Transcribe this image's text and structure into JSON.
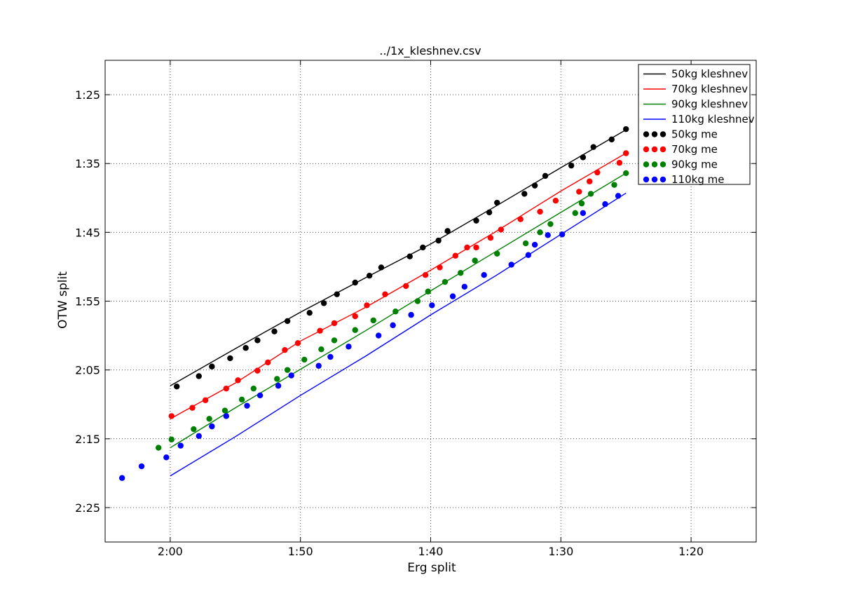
{
  "title": "../1x_kleshnev.csv",
  "axes": {
    "xlabel": "Erg split",
    "ylabel": "OTW split"
  },
  "styles": {
    "background": "#ffffff",
    "spine_color": "#000000",
    "grid_color": "#444444",
    "tick_color": "#000000",
    "legend_border": "#000000",
    "legend_background": "#ffffff"
  },
  "legend": {
    "position": "upper right",
    "entries": [
      {
        "label": "50kg kleshnev",
        "marker": "line",
        "color": "#000000"
      },
      {
        "label": "70kg kleshnev",
        "marker": "line",
        "color": "#ff0000"
      },
      {
        "label": "90kg kleshnev",
        "marker": "line",
        "color": "#008000"
      },
      {
        "label": "110kg kleshnev",
        "marker": "line",
        "color": "#0000ff"
      },
      {
        "label": "50kg me",
        "marker": "dots",
        "color": "#000000"
      },
      {
        "label": "70kg me",
        "marker": "dots",
        "color": "#ff0000"
      },
      {
        "label": "90kg me",
        "marker": "dots",
        "color": "#008000"
      },
      {
        "label": "110kg me",
        "marker": "dots",
        "color": "#0000ff"
      }
    ]
  },
  "chart_data": {
    "type": "line+scatter",
    "title": "../1x_kleshnev.csv",
    "xlabel": "Erg split",
    "ylabel": "OTW split",
    "grid": true,
    "legend_position": "upper right",
    "x_axis": {
      "unit": "split seconds per 500m (mm:ss labels)",
      "reversed": true,
      "domain": [
        125,
        75
      ],
      "ticks": [
        {
          "label": "2:00",
          "value": 120
        },
        {
          "label": "1:50",
          "value": 110
        },
        {
          "label": "1:40",
          "value": 100
        },
        {
          "label": "1:30",
          "value": 90
        },
        {
          "label": "1:20",
          "value": 80
        }
      ]
    },
    "y_axis": {
      "unit": "split seconds per 500m (mm:ss labels)",
      "inverted": true,
      "domain": [
        80,
        150
      ],
      "ticks": [
        {
          "label": "1:25",
          "value": 85
        },
        {
          "label": "1:35",
          "value": 95
        },
        {
          "label": "1:45",
          "value": 105
        },
        {
          "label": "1:55",
          "value": 115
        },
        {
          "label": "2:05",
          "value": 125
        },
        {
          "label": "2:15",
          "value": 135
        },
        {
          "label": "2:25",
          "value": 145
        }
      ]
    },
    "series": [
      {
        "name": "50kg kleshnev",
        "type": "line",
        "color": "#000000",
        "linewidth": 1.4,
        "x": [
          120,
          115,
          110,
          105,
          100,
          95,
          90,
          85
        ],
        "y": [
          127.3,
          121.9,
          116.6,
          111.6,
          106.7,
          101.2,
          95.6,
          90.1
        ]
      },
      {
        "name": "70kg kleshnev",
        "type": "line",
        "color": "#ff0000",
        "linewidth": 1.4,
        "x": [
          120,
          115,
          110,
          105,
          100,
          95,
          90,
          85
        ],
        "y": [
          132.1,
          126.9,
          120.8,
          115.9,
          110.5,
          104.9,
          99.0,
          93.5
        ]
      },
      {
        "name": "90kg kleshnev",
        "type": "line",
        "color": "#008000",
        "linewidth": 1.4,
        "x": [
          120,
          115,
          110,
          105,
          100,
          95,
          90,
          85
        ],
        "y": [
          136.3,
          130.5,
          124.9,
          119.3,
          113.5,
          107.8,
          102.1,
          96.4
        ]
      },
      {
        "name": "110kg kleshnev",
        "type": "line",
        "color": "#0000ff",
        "linewidth": 1.4,
        "x": [
          120,
          115,
          110,
          105,
          100,
          95,
          90,
          85
        ],
        "y": [
          140.4,
          134.7,
          128.7,
          123.0,
          117.0,
          111.3,
          105.3,
          99.3
        ]
      },
      {
        "name": "50kg me",
        "type": "scatter",
        "color": "#000000",
        "markersize": 4.2,
        "points": [
          [
            119.5,
            127.4
          ],
          [
            117.8,
            125.9
          ],
          [
            116.8,
            124.5
          ],
          [
            115.4,
            123.3
          ],
          [
            114.2,
            121.8
          ],
          [
            113.3,
            120.7
          ],
          [
            112.0,
            119.4
          ],
          [
            111.0,
            117.9
          ],
          [
            109.3,
            116.7
          ],
          [
            108.2,
            115.3
          ],
          [
            107.2,
            114.0
          ],
          [
            105.8,
            112.3
          ],
          [
            104.7,
            111.3
          ],
          [
            103.8,
            110.1
          ],
          [
            101.6,
            108.5
          ],
          [
            100.6,
            107.2
          ],
          [
            99.4,
            106.2
          ],
          [
            98.7,
            104.8
          ],
          [
            96.5,
            103.3
          ],
          [
            95.5,
            102.1
          ],
          [
            94.9,
            100.7
          ],
          [
            92.8,
            99.4
          ],
          [
            92.0,
            98.2
          ],
          [
            91.2,
            96.8
          ],
          [
            89.2,
            95.3
          ],
          [
            88.3,
            94.1
          ],
          [
            87.5,
            92.6
          ],
          [
            86.1,
            91.5
          ],
          [
            85.0,
            90.0
          ]
        ]
      },
      {
        "name": "70kg me",
        "type": "scatter",
        "color": "#ff0000",
        "markersize": 4.2,
        "points": [
          [
            119.9,
            131.7
          ],
          [
            118.3,
            130.5
          ],
          [
            117.3,
            129.4
          ],
          [
            115.7,
            127.7
          ],
          [
            114.8,
            126.5
          ],
          [
            113.3,
            125.1
          ],
          [
            112.5,
            123.9
          ],
          [
            111.2,
            122.1
          ],
          [
            110.2,
            121.1
          ],
          [
            108.5,
            119.3
          ],
          [
            107.4,
            118.2
          ],
          [
            105.8,
            117.2
          ],
          [
            104.9,
            115.6
          ],
          [
            103.5,
            114.0
          ],
          [
            101.9,
            112.8
          ],
          [
            100.4,
            111.2
          ],
          [
            99.3,
            110.1
          ],
          [
            98.1,
            108.4
          ],
          [
            97.2,
            107.2
          ],
          [
            96.5,
            107.2
          ],
          [
            95.4,
            105.8
          ],
          [
            94.6,
            104.6
          ],
          [
            93.1,
            103.1
          ],
          [
            91.6,
            102.0
          ],
          [
            90.4,
            100.4
          ],
          [
            88.6,
            99.1
          ],
          [
            87.8,
            97.6
          ],
          [
            87.2,
            96.3
          ],
          [
            85.5,
            94.9
          ],
          [
            85.0,
            93.5
          ]
        ]
      },
      {
        "name": "90kg me",
        "type": "scatter",
        "color": "#008000",
        "markersize": 4.2,
        "points": [
          [
            120.9,
            136.3
          ],
          [
            119.9,
            135.1
          ],
          [
            118.2,
            133.6
          ],
          [
            117.0,
            132.1
          ],
          [
            115.8,
            130.9
          ],
          [
            114.5,
            129.3
          ],
          [
            113.6,
            127.7
          ],
          [
            111.8,
            126.3
          ],
          [
            111.0,
            125.0
          ],
          [
            109.7,
            123.5
          ],
          [
            108.4,
            122.0
          ],
          [
            107.4,
            120.7
          ],
          [
            105.8,
            119.2
          ],
          [
            104.4,
            117.8
          ],
          [
            102.7,
            116.5
          ],
          [
            101.0,
            115.0
          ],
          [
            100.2,
            113.6
          ],
          [
            98.9,
            112.2
          ],
          [
            97.7,
            110.9
          ],
          [
            96.6,
            109.1
          ],
          [
            94.9,
            108.1
          ],
          [
            92.7,
            106.6
          ],
          [
            91.6,
            105.0
          ],
          [
            90.8,
            103.8
          ],
          [
            88.9,
            102.2
          ],
          [
            88.4,
            100.8
          ],
          [
            87.7,
            99.4
          ],
          [
            85.9,
            98.1
          ],
          [
            85.0,
            96.4
          ]
        ]
      },
      {
        "name": "110kg me",
        "type": "scatter",
        "color": "#0000ff",
        "markersize": 4.2,
        "points": [
          [
            123.7,
            140.7
          ],
          [
            122.2,
            139.0
          ],
          [
            120.3,
            137.7
          ],
          [
            119.2,
            136.0
          ],
          [
            117.8,
            134.6
          ],
          [
            116.8,
            133.2
          ],
          [
            115.7,
            131.7
          ],
          [
            114.1,
            130.2
          ],
          [
            113.1,
            128.7
          ],
          [
            111.7,
            127.3
          ],
          [
            110.7,
            125.8
          ],
          [
            108.6,
            124.4
          ],
          [
            107.7,
            123.1
          ],
          [
            106.3,
            121.6
          ],
          [
            104.0,
            120.0
          ],
          [
            102.9,
            118.5
          ],
          [
            101.5,
            117.0
          ],
          [
            99.9,
            115.6
          ],
          [
            98.3,
            114.3
          ],
          [
            97.4,
            112.9
          ],
          [
            95.9,
            111.2
          ],
          [
            93.8,
            109.7
          ],
          [
            92.5,
            108.3
          ],
          [
            92.0,
            106.8
          ],
          [
            91.0,
            105.4
          ],
          [
            89.9,
            105.3
          ],
          [
            88.3,
            102.2
          ],
          [
            86.6,
            100.9
          ],
          [
            85.6,
            99.7
          ]
        ]
      }
    ]
  }
}
